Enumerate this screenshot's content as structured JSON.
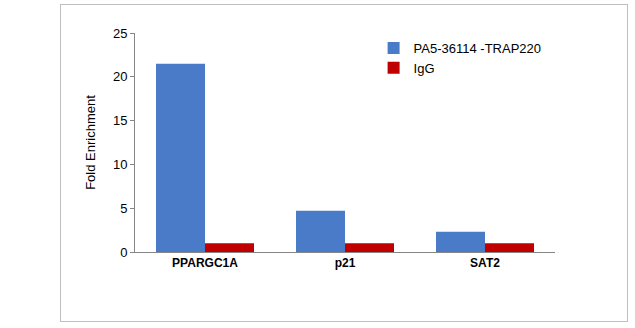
{
  "chart_data": {
    "type": "bar",
    "y_label": "Fold Enrichment",
    "categories": [
      "PPARGC1A",
      "p21",
      "SAT2"
    ],
    "series": [
      {
        "name": "PA5-36114 -TRAP220",
        "color": "#4a7bc8",
        "values": [
          21.5,
          4.7,
          2.3
        ]
      },
      {
        "name": "IgG",
        "color": "#c00000",
        "values": [
          1,
          1,
          1
        ]
      }
    ],
    "ylim": [
      0,
      25
    ],
    "yticks": [
      0,
      5,
      10,
      15,
      20,
      25
    ],
    "grid": false,
    "legend": "upper right"
  }
}
